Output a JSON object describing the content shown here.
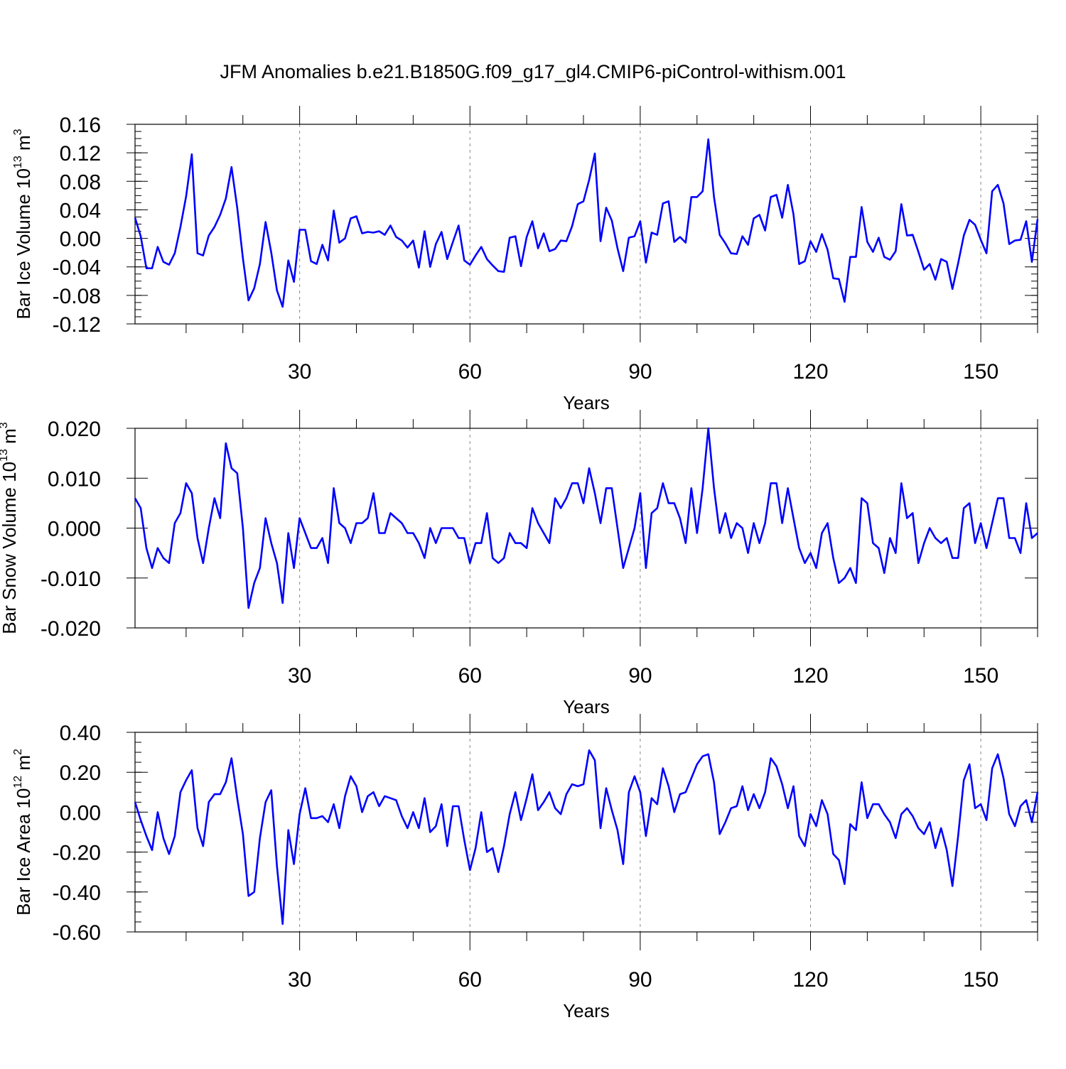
{
  "figure": {
    "title": "JFM Anomalies b.e21.B1850G.f09_g17_gl4.CMIP6-piControl-withism.001"
  },
  "colors": {
    "line": "#0000ff",
    "frame": "#000000",
    "grid": "#888888"
  },
  "chart_data": [
    {
      "type": "line",
      "title": "",
      "xlabel": "Years",
      "ylabel_main": "Bar Ice Volume 10",
      "ylabel_exp": "13",
      "ylabel_unit": " m",
      "ylabel_unit_exp": "3",
      "xlim": [
        1,
        160
      ],
      "ylim": [
        -0.12,
        0.16
      ],
      "x_ticks": [
        30,
        60,
        90,
        120,
        150
      ],
      "x_tick_labels": [
        "30",
        "60",
        "90",
        "120",
        "150"
      ],
      "y_ticks": [
        -0.12,
        -0.08,
        -0.04,
        0.0,
        0.04,
        0.08,
        0.12,
        0.16
      ],
      "y_tick_labels": [
        "-0.12",
        "-0.08",
        "-0.04",
        "0.00",
        "0.04",
        "0.08",
        "0.12",
        "0.16"
      ],
      "y_minor_step": 0.01,
      "x_minor_step": 10,
      "grid": "vertical dashed at major x ticks",
      "x_start": 1,
      "series": [
        {
          "values": [
            0.029,
            0.003,
            -0.042,
            -0.042,
            -0.012,
            -0.033,
            -0.037,
            -0.021,
            0.016,
            0.059,
            0.118,
            -0.021,
            -0.024,
            0.004,
            0.016,
            0.033,
            0.056,
            0.1,
            0.043,
            -0.028,
            -0.087,
            -0.07,
            -0.036,
            0.023,
            -0.02,
            -0.073,
            -0.096,
            -0.031,
            -0.061,
            0.012,
            0.012,
            -0.032,
            -0.036,
            -0.009,
            -0.031,
            0.039,
            -0.006,
            0.0,
            0.028,
            0.031,
            0.007,
            0.009,
            0.008,
            0.01,
            0.005,
            0.018,
            0.002,
            -0.003,
            -0.013,
            -0.003,
            -0.041,
            0.01,
            -0.04,
            -0.008,
            0.009,
            -0.029,
            -0.005,
            0.018,
            -0.031,
            -0.037,
            -0.024,
            -0.012,
            -0.029,
            -0.038,
            -0.046,
            -0.047,
            0.001,
            0.003,
            -0.039,
            0.002,
            0.024,
            -0.014,
            0.007,
            -0.018,
            -0.015,
            -0.003,
            -0.004,
            0.017,
            0.048,
            0.052,
            0.082,
            0.119,
            -0.004,
            0.043,
            0.025,
            -0.014,
            -0.046,
            0.001,
            0.003,
            0.024,
            -0.034,
            0.008,
            0.005,
            0.049,
            0.052,
            -0.005,
            0.002,
            -0.006,
            0.058,
            0.058,
            0.066,
            0.139,
            0.058,
            0.005,
            -0.007,
            -0.021,
            -0.022,
            0.003,
            -0.009,
            0.028,
            0.033,
            0.011,
            0.058,
            0.061,
            0.029,
            0.075,
            0.034,
            -0.036,
            -0.032,
            -0.004,
            -0.019,
            0.006,
            -0.016,
            -0.056,
            -0.057,
            -0.089,
            -0.026,
            -0.026,
            0.044,
            -0.005,
            -0.019,
            0.001,
            -0.026,
            -0.03,
            -0.018,
            0.048,
            0.004,
            0.005,
            -0.019,
            -0.044,
            -0.036,
            -0.058,
            -0.029,
            -0.033,
            -0.071,
            -0.035,
            0.004,
            0.026,
            0.019,
            -0.002,
            -0.021,
            0.066,
            0.075,
            0.049,
            -0.008,
            -0.003,
            -0.002,
            0.024,
            -0.033,
            0.027
          ]
        }
      ]
    },
    {
      "type": "line",
      "title": "",
      "xlabel": "Years",
      "ylabel_main": "Bar Snow Volume 10",
      "ylabel_exp": "13",
      "ylabel_unit": " m",
      "ylabel_unit_exp": "3",
      "xlim": [
        1,
        160
      ],
      "ylim": [
        -0.02,
        0.02
      ],
      "x_ticks": [
        30,
        60,
        90,
        120,
        150
      ],
      "x_tick_labels": [
        "30",
        "60",
        "90",
        "120",
        "150"
      ],
      "y_ticks": [
        -0.02,
        -0.01,
        0.0,
        0.01,
        0.02
      ],
      "y_tick_labels": [
        "-0.020",
        "-0.010",
        "0.000",
        "0.010",
        "0.020"
      ],
      "y_minor_step": null,
      "x_minor_step": 10,
      "grid": "vertical dashed at major x ticks",
      "x_start": 1,
      "series": [
        {
          "values": [
            0.006,
            0.004,
            -0.004,
            -0.008,
            -0.004,
            -0.006,
            -0.007,
            0.001,
            0.003,
            0.009,
            0.007,
            -0.002,
            -0.007,
            0.0,
            0.006,
            0.002,
            0.017,
            0.012,
            0.011,
            0.0,
            -0.016,
            -0.011,
            -0.008,
            0.002,
            -0.003,
            -0.007,
            -0.015,
            -0.001,
            -0.008,
            0.002,
            -0.001,
            -0.004,
            -0.004,
            -0.002,
            -0.007,
            0.008,
            0.001,
            0.0,
            -0.003,
            0.001,
            0.001,
            0.002,
            0.007,
            -0.001,
            -0.001,
            0.003,
            0.002,
            0.001,
            -0.001,
            -0.001,
            -0.003,
            -0.006,
            0.0,
            -0.003,
            0.0,
            0.0,
            0.0,
            -0.002,
            -0.002,
            -0.007,
            -0.003,
            -0.003,
            0.003,
            -0.006,
            -0.007,
            -0.006,
            -0.001,
            -0.003,
            -0.003,
            -0.004,
            0.004,
            0.001,
            -0.001,
            -0.003,
            0.006,
            0.004,
            0.006,
            0.009,
            0.009,
            0.005,
            0.012,
            0.007,
            0.001,
            0.008,
            0.008,
            0.0,
            -0.008,
            -0.004,
            0.0,
            0.007,
            -0.008,
            0.003,
            0.004,
            0.009,
            0.005,
            0.005,
            0.002,
            -0.003,
            0.008,
            -0.001,
            0.008,
            0.02,
            0.008,
            -0.001,
            0.003,
            -0.002,
            0.001,
            0.0,
            -0.005,
            0.001,
            -0.003,
            0.001,
            0.009,
            0.009,
            0.001,
            0.008,
            0.002,
            -0.004,
            -0.007,
            -0.005,
            -0.008,
            -0.001,
            0.001,
            -0.006,
            -0.011,
            -0.01,
            -0.008,
            -0.011,
            0.006,
            0.005,
            -0.003,
            -0.004,
            -0.009,
            -0.002,
            -0.005,
            0.009,
            0.002,
            0.003,
            -0.007,
            -0.003,
            0.0,
            -0.002,
            -0.003,
            -0.002,
            -0.006,
            -0.006,
            0.004,
            0.005,
            -0.003,
            0.001,
            -0.004,
            0.001,
            0.006,
            0.006,
            -0.002,
            -0.002,
            -0.005,
            0.005,
            -0.002,
            -0.001
          ]
        }
      ]
    },
    {
      "type": "line",
      "title": "",
      "xlabel": "Years",
      "ylabel_main": "Bar Ice Area 10",
      "ylabel_exp": "12",
      "ylabel_unit": " m",
      "ylabel_unit_exp": "2",
      "xlim": [
        1,
        160
      ],
      "ylim": [
        -0.6,
        0.4
      ],
      "x_ticks": [
        30,
        60,
        90,
        120,
        150
      ],
      "x_tick_labels": [
        "30",
        "60",
        "90",
        "120",
        "150"
      ],
      "y_ticks": [
        -0.6,
        -0.4,
        -0.2,
        0.0,
        0.2,
        0.4
      ],
      "y_tick_labels": [
        "-0.60",
        "-0.40",
        "-0.20",
        "0.00",
        "0.20",
        "0.40"
      ],
      "y_minor_step": 0.05,
      "x_minor_step": 10,
      "grid": "vertical dashed at major x ticks",
      "x_start": 1,
      "series": [
        {
          "values": [
            0.05,
            -0.04,
            -0.12,
            -0.19,
            0.0,
            -0.13,
            -0.21,
            -0.12,
            0.1,
            0.16,
            0.21,
            -0.08,
            -0.17,
            0.05,
            0.09,
            0.09,
            0.15,
            0.27,
            0.07,
            -0.11,
            -0.42,
            -0.4,
            -0.13,
            0.05,
            0.11,
            -0.27,
            -0.56,
            -0.09,
            -0.26,
            -0.01,
            0.12,
            -0.03,
            -0.03,
            -0.02,
            -0.05,
            0.04,
            -0.08,
            0.08,
            0.18,
            0.13,
            0.0,
            0.08,
            0.1,
            0.03,
            0.08,
            0.07,
            0.06,
            -0.02,
            -0.08,
            0.0,
            -0.08,
            0.07,
            -0.1,
            -0.07,
            0.04,
            -0.17,
            0.03,
            0.03,
            -0.14,
            -0.29,
            -0.18,
            0.0,
            -0.2,
            -0.18,
            -0.3,
            -0.17,
            -0.01,
            0.1,
            -0.04,
            0.07,
            0.19,
            0.01,
            0.05,
            0.1,
            0.02,
            -0.01,
            0.09,
            0.14,
            0.13,
            0.14,
            0.31,
            0.26,
            -0.08,
            0.12,
            0.01,
            -0.09,
            -0.26,
            0.1,
            0.18,
            0.1,
            -0.12,
            0.07,
            0.04,
            0.22,
            0.13,
            0.0,
            0.09,
            0.1,
            0.17,
            0.24,
            0.28,
            0.29,
            0.15,
            -0.11,
            -0.05,
            0.02,
            0.03,
            0.13,
            0.01,
            0.09,
            0.02,
            0.1,
            0.27,
            0.23,
            0.14,
            0.02,
            0.13,
            -0.12,
            -0.17,
            -0.01,
            -0.07,
            0.06,
            -0.01,
            -0.21,
            -0.24,
            -0.36,
            -0.06,
            -0.09,
            0.15,
            -0.03,
            0.04,
            0.04,
            -0.01,
            -0.05,
            -0.13,
            -0.01,
            0.02,
            -0.02,
            -0.08,
            -0.11,
            -0.05,
            -0.18,
            -0.08,
            -0.19,
            -0.37,
            -0.12,
            0.16,
            0.24,
            0.02,
            0.04,
            -0.04,
            0.22,
            0.29,
            0.17,
            -0.01,
            -0.07,
            0.03,
            0.06,
            -0.05,
            0.1
          ]
        }
      ]
    }
  ]
}
